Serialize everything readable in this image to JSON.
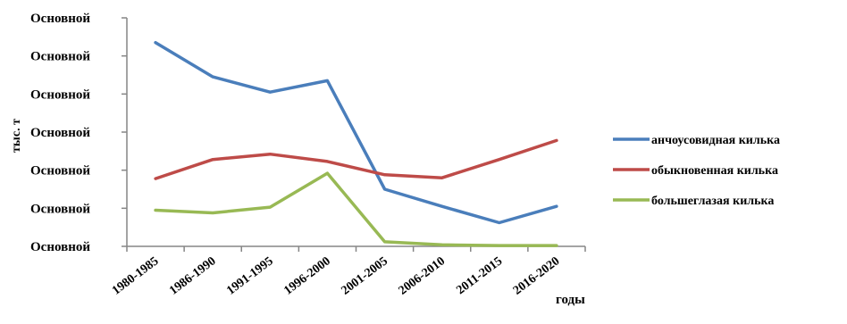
{
  "chart_data": {
    "type": "line",
    "title": "",
    "xlabel": "годы",
    "ylabel": "тыс. т",
    "categories": [
      "1980-1985",
      "1986-1990",
      "1991-1995",
      "1996-2000",
      "2001-2005",
      "2006-2010",
      "2011-2015",
      "2016-2020"
    ],
    "y_tick_labels": [
      "Основной",
      "Основной",
      "Основной",
      "Основной",
      "Основной",
      "Основной",
      "Основной"
    ],
    "ylim": [
      0,
      6
    ],
    "grid": false,
    "legend_position": "right",
    "series": [
      {
        "name": "анчоусовидная килька",
        "color": "#4a7ebb",
        "values": [
          5.35,
          4.45,
          4.05,
          4.35,
          1.5,
          1.05,
          0.62,
          1.05
        ]
      },
      {
        "name": "обыкновенная килька",
        "color": "#be4b48",
        "values": [
          1.78,
          2.28,
          2.42,
          2.23,
          1.88,
          1.8,
          2.28,
          2.78
        ]
      },
      {
        "name": "большеглазая килька",
        "color": "#98b954",
        "values": [
          0.95,
          0.88,
          1.03,
          1.92,
          0.12,
          0.04,
          0.02,
          0.02
        ]
      }
    ]
  }
}
